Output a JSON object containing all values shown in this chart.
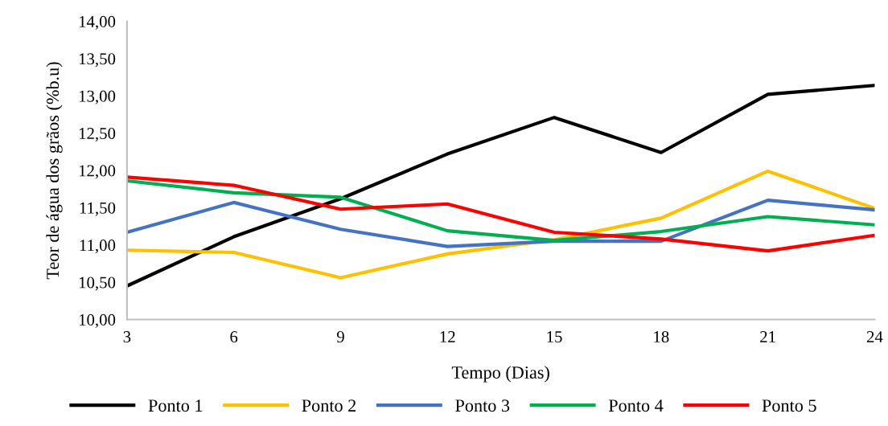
{
  "chart_data": {
    "type": "line",
    "xlabel": "Tempo (Dias)",
    "ylabel": "Teor de água dos grãos (%b.u)",
    "x": [
      3,
      6,
      9,
      12,
      15,
      18,
      21,
      24
    ],
    "xlim": [
      3,
      24
    ],
    "xticks": [
      3,
      6,
      9,
      12,
      15,
      18,
      21,
      24
    ],
    "ylim": [
      10,
      14
    ],
    "yticks": [
      {
        "value": 10,
        "label": "10,00"
      },
      {
        "value": 10.5,
        "label": "10,50"
      },
      {
        "value": 11,
        "label": "11,00"
      },
      {
        "value": 11.5,
        "label": "11,50"
      },
      {
        "value": 12,
        "label": "12,00"
      },
      {
        "value": 12.5,
        "label": "12,50"
      },
      {
        "value": 13,
        "label": "13,00"
      },
      {
        "value": 13.5,
        "label": "13,50"
      },
      {
        "value": 14,
        "label": "14,00"
      }
    ],
    "grid": false,
    "legend": "bottom",
    "series": [
      {
        "name": "Ponto 1",
        "color": "#000000",
        "values": [
          10.45,
          11.11,
          11.62,
          12.22,
          12.71,
          12.24,
          13.02,
          13.14
        ]
      },
      {
        "name": "Ponto 2",
        "color": "#ffc000",
        "values": [
          10.93,
          10.9,
          10.56,
          10.88,
          11.07,
          11.36,
          11.99,
          11.49
        ]
      },
      {
        "name": "Ponto 3",
        "color": "#4472c4",
        "values": [
          11.17,
          11.57,
          11.21,
          10.98,
          11.05,
          11.05,
          11.6,
          11.47
        ]
      },
      {
        "name": "Ponto 4",
        "color": "#00b050",
        "values": [
          11.86,
          11.7,
          11.64,
          11.19,
          11.06,
          11.18,
          11.38,
          11.27
        ]
      },
      {
        "name": "Ponto 5",
        "color": "#ff0000",
        "values": [
          11.91,
          11.8,
          11.48,
          11.55,
          11.17,
          11.08,
          10.92,
          11.13
        ]
      }
    ]
  }
}
